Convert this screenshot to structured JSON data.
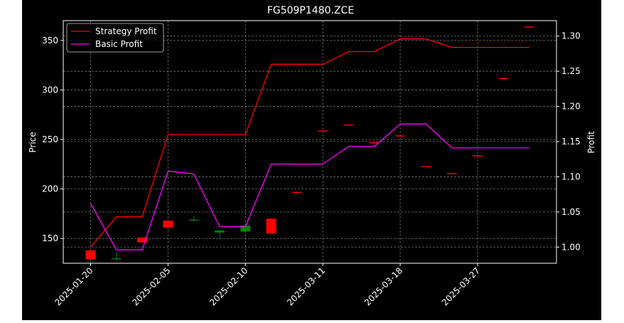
{
  "chart_data": {
    "type": "candlestick",
    "title": "FG509P1480.ZCE",
    "xlabel": "",
    "ylabel_left": "Price",
    "ylabel_right": "Profit",
    "ylim_left": [
      125,
      370
    ],
    "ylim_right": [
      0.977,
      1.322
    ],
    "yticks_left": [
      150,
      200,
      250,
      300,
      350
    ],
    "yticks_right": [
      "1.00",
      "1.05",
      "1.10",
      "1.15",
      "1.20",
      "1.25",
      "1.30"
    ],
    "xticks": [
      {
        "index": 0,
        "label": "2025-01-20"
      },
      {
        "index": 3,
        "label": "2025-02-05"
      },
      {
        "index": 6,
        "label": "2025-02-10"
      },
      {
        "index": 9,
        "label": "2025-03-11"
      },
      {
        "index": 12,
        "label": "2025-03-18"
      },
      {
        "index": 15,
        "label": "2025-03-27"
      }
    ],
    "grid": true,
    "legend_position": "upper-left",
    "background": "#000000",
    "foreground": "#ffffff",
    "candles": [
      {
        "o": 138,
        "h": 138,
        "l": 129,
        "c": 129,
        "color": "#ff0000"
      },
      {
        "o": 129,
        "h": 136,
        "l": 128,
        "c": 130,
        "color": "#008000"
      },
      {
        "o": 151,
        "h": 151,
        "l": 146,
        "c": 146,
        "color": "#ff0000"
      },
      {
        "o": 168,
        "h": 168,
        "l": 161,
        "c": 161,
        "color": "#ff0000"
      },
      {
        "o": 168,
        "h": 173,
        "l": 167,
        "c": 169,
        "color": "#008000"
      },
      {
        "o": 156,
        "h": 159,
        "l": 149,
        "c": 158,
        "color": "#008000"
      },
      {
        "o": 157,
        "h": 164,
        "l": 156,
        "c": 163,
        "color": "#008000"
      },
      {
        "o": 170,
        "h": 170,
        "l": 155,
        "c": 155,
        "color": "#ff0000"
      },
      {
        "o": 197,
        "h": 197,
        "l": 196,
        "c": 196,
        "color": "#ff0000"
      },
      {
        "o": 259,
        "h": 259,
        "l": 258,
        "c": 258,
        "color": "#ff0000"
      },
      {
        "o": 265,
        "h": 265,
        "l": 264,
        "c": 264,
        "color": "#ff0000"
      },
      {
        "o": 247,
        "h": 247,
        "l": 246,
        "c": 246,
        "color": "#ff0000"
      },
      {
        "o": 254,
        "h": 254,
        "l": 253,
        "c": 253,
        "color": "#ff0000"
      },
      {
        "o": 223,
        "h": 223,
        "l": 222,
        "c": 222,
        "color": "#ff0000"
      },
      {
        "o": 216,
        "h": 216,
        "l": 215,
        "c": 215,
        "color": "#ff0000"
      },
      {
        "o": 234,
        "h": 234,
        "l": 233,
        "c": 233,
        "color": "#ff0000"
      },
      {
        "o": 312,
        "h": 312,
        "l": 311,
        "c": 311,
        "color": "#ff0000"
      },
      {
        "o": 364,
        "h": 364,
        "l": 363,
        "c": 363,
        "color": "#ff0000"
      }
    ],
    "series": [
      {
        "name": "Strategy Profit",
        "color": "#ff0000",
        "values": [
          1.0,
          1.043,
          1.043,
          1.16,
          1.16,
          1.16,
          1.16,
          1.26,
          1.26,
          1.26,
          1.278,
          1.278,
          1.296,
          1.296,
          1.284,
          1.284,
          1.284,
          1.284
        ]
      },
      {
        "name": "Basic Profit",
        "color": "#ff00ff",
        "values": [
          1.062,
          0.996,
          0.996,
          1.108,
          1.104,
          1.029,
          1.029,
          1.118,
          1.118,
          1.118,
          1.143,
          1.143,
          1.175,
          1.175,
          1.141,
          1.141,
          1.141,
          1.141
        ]
      }
    ]
  }
}
